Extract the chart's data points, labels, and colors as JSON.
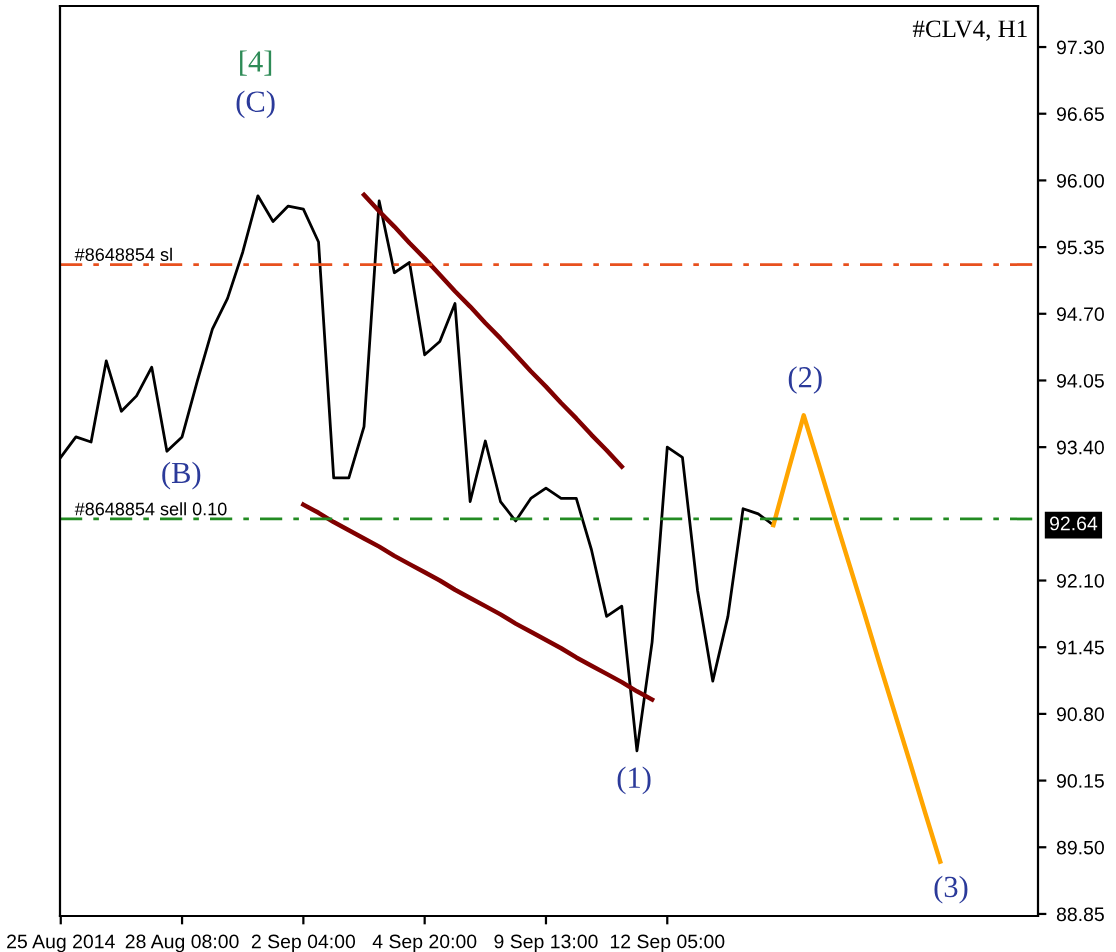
{
  "chart_data": {
    "type": "line",
    "title": "#CLV4, H1",
    "categories": [
      "25 Aug 2014",
      null,
      null,
      null,
      null,
      null,
      null,
      null,
      "28 Aug 08:00",
      null,
      null,
      null,
      null,
      null,
      null,
      null,
      "2 Sep 04:00",
      null,
      null,
      null,
      null,
      null,
      null,
      null,
      "4 Sep 20:00",
      null,
      null,
      null,
      null,
      null,
      null,
      null,
      "9 Sep 13:00",
      null,
      null,
      null,
      null,
      null,
      null,
      null,
      "12 Sep 05:00",
      null,
      null,
      null,
      null,
      null,
      null,
      null,
      null,
      null,
      null,
      null,
      null,
      null,
      null,
      null,
      null,
      null,
      null,
      null,
      null,
      null,
      null,
      null,
      null
    ],
    "ylim": [
      88.83,
      97.7
    ],
    "yticks": [
      {
        "value": 88.85,
        "label": "88.85"
      },
      {
        "value": 89.5,
        "label": "89.50"
      },
      {
        "value": 90.15,
        "label": "90.15"
      },
      {
        "value": 90.8,
        "label": "90.80"
      },
      {
        "value": 91.45,
        "label": "91.45"
      },
      {
        "value": 92.1,
        "label": "92.10"
      },
      {
        "value": 93.4,
        "label": "93.40"
      },
      {
        "value": 94.05,
        "label": "94.05"
      },
      {
        "value": 94.7,
        "label": "94.70"
      },
      {
        "value": 95.35,
        "label": "95.35"
      },
      {
        "value": 96.0,
        "label": "96.00"
      },
      {
        "value": 96.65,
        "label": "96.65"
      },
      {
        "value": 97.3,
        "label": "97.30"
      }
    ],
    "series": [
      {
        "color": "#000000",
        "values": [
          93.3,
          93.5,
          93.45,
          94.24,
          93.75,
          93.9,
          94.18,
          93.36,
          93.5,
          94.04,
          94.55,
          94.85,
          95.3,
          95.85,
          95.6,
          95.75,
          95.72,
          95.4,
          93.1,
          93.1,
          93.6,
          95.8,
          95.1,
          95.2,
          94.3,
          94.43,
          94.8,
          92.87,
          93.46,
          92.87,
          92.68,
          92.9,
          93.0,
          92.9,
          92.9,
          92.4,
          91.75,
          91.85,
          90.44,
          91.5,
          93.4,
          93.3,
          92.0,
          91.12,
          91.75,
          92.8,
          92.75,
          92.64,
          null,
          null,
          null,
          null,
          null,
          null,
          null,
          null,
          null,
          null,
          null,
          null,
          null,
          null,
          null,
          null,
          null
        ]
      },
      {
        "color": "#800000",
        "values": [
          null,
          null,
          null,
          null,
          null,
          null,
          null,
          null,
          null,
          null,
          null,
          null,
          null,
          null,
          null,
          null,
          null,
          null,
          null,
          null,
          95.86,
          95.7,
          95.55,
          95.39,
          95.24,
          95.08,
          94.92,
          94.77,
          94.61,
          94.46,
          94.3,
          94.14,
          93.99,
          93.83,
          93.68,
          93.52,
          93.37,
          93.21,
          null,
          null,
          null,
          null,
          null,
          null,
          null,
          null,
          null,
          null,
          null,
          null,
          null,
          null,
          null,
          null,
          null,
          null,
          null,
          null,
          null,
          null,
          null,
          null,
          null,
          null,
          null
        ]
      },
      {
        "color": "#800000",
        "values": [
          null,
          null,
          null,
          null,
          null,
          null,
          null,
          null,
          null,
          null,
          null,
          null,
          null,
          null,
          null,
          null,
          92.84,
          92.76,
          92.67,
          92.59,
          92.51,
          92.43,
          92.34,
          92.26,
          92.18,
          92.1,
          92.01,
          91.93,
          91.85,
          91.77,
          91.68,
          91.6,
          91.52,
          91.44,
          91.35,
          91.27,
          91.19,
          91.11,
          91.02,
          90.94,
          null,
          null,
          null,
          null,
          null,
          null,
          null,
          null,
          null,
          null,
          null,
          null,
          null,
          null,
          null,
          null,
          null,
          null,
          null,
          null,
          null,
          null,
          null,
          null,
          null
        ]
      },
      {
        "color": "#ffa500",
        "values": [
          null,
          null,
          null,
          null,
          null,
          null,
          null,
          null,
          null,
          null,
          null,
          null,
          null,
          null,
          null,
          null,
          null,
          null,
          null,
          null,
          null,
          null,
          null,
          null,
          null,
          null,
          null,
          null,
          null,
          null,
          null,
          null,
          null,
          null,
          null,
          null,
          null,
          null,
          null,
          null,
          null,
          null,
          null,
          null,
          null,
          null,
          null,
          92.64,
          93.18,
          93.71,
          93.23,
          92.74,
          92.26,
          91.78,
          91.29,
          90.81,
          90.33,
          89.84,
          89.36,
          null,
          null,
          null,
          null,
          null,
          null
        ]
      }
    ],
    "ref_lines": [
      {
        "axis": "y",
        "value": 95.18,
        "label": "#8648854 sl",
        "color": "#e8501e",
        "line_style": "dashdot"
      },
      {
        "axis": "y",
        "value": 92.7,
        "label": "#8648854 sell 0.10",
        "color": "#228b22",
        "line_style": "dashdot"
      }
    ],
    "annotations": [
      "[4]",
      "(C)",
      "(B)",
      "(1)",
      "(2)",
      "(3)",
      "92.64"
    ]
  }
}
